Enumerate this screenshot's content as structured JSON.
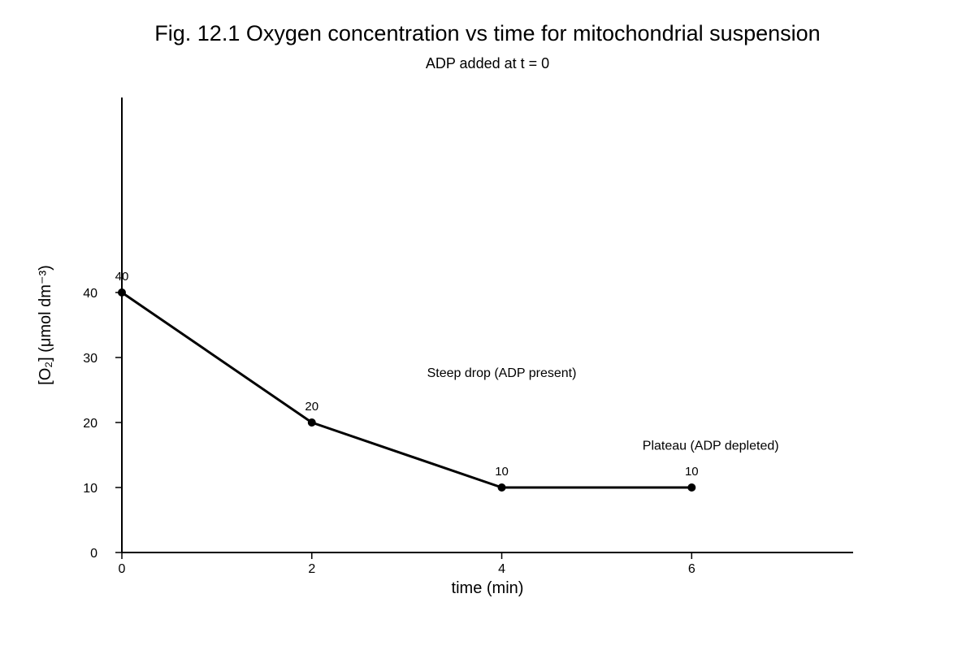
{
  "chart_data": {
    "type": "line",
    "title": "Fig. 12.1 Oxygen concentration vs time for mitochondrial suspension",
    "subtitle": "ADP added at t = 0",
    "xlabel": "time (min)",
    "ylabel": "[O₂] (μmol dm⁻³)",
    "x": [
      0,
      2,
      4,
      6
    ],
    "series": [
      {
        "values": [
          40,
          20,
          10,
          10
        ]
      }
    ],
    "data_labels": [
      "40",
      "20",
      "10",
      "10"
    ],
    "xticks": [
      {
        "value": 0,
        "label": "0"
      },
      {
        "value": 2,
        "label": "2"
      },
      {
        "value": 4,
        "label": "4"
      },
      {
        "value": 6,
        "label": "6"
      }
    ],
    "yticks": [
      {
        "value": 0,
        "label": "0"
      },
      {
        "value": 10,
        "label": "10"
      },
      {
        "value": 20,
        "label": "20"
      },
      {
        "value": 30,
        "label": "30"
      },
      {
        "value": 40,
        "label": "40"
      }
    ],
    "xlim": [
      0,
      7.7
    ],
    "ylim": [
      0,
      70
    ],
    "annotations": [
      {
        "text": "Steep drop (ADP present)",
        "x": 4,
        "y": 27
      },
      {
        "text": "Plateau (ADP depleted)",
        "x": 6.2,
        "y": 15.8
      }
    ],
    "grid": false,
    "legend": "none",
    "line_color": "#000000"
  }
}
